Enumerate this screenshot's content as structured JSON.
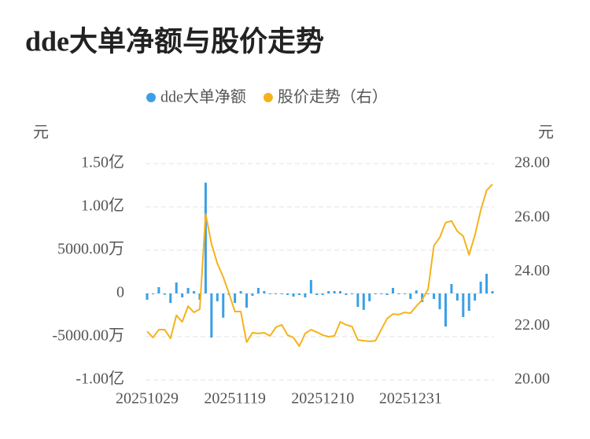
{
  "chart_data": {
    "type": "bar-line",
    "title": "dde大单净额与股价走势",
    "y_label": "元",
    "y2_label": "元",
    "categories": [
      "20251029",
      null,
      null,
      null,
      null,
      null,
      null,
      null,
      null,
      null,
      null,
      null,
      null,
      null,
      null,
      "20251119",
      null,
      null,
      null,
      null,
      null,
      null,
      null,
      null,
      null,
      null,
      null,
      null,
      null,
      null,
      "20251210",
      null,
      null,
      null,
      null,
      null,
      null,
      null,
      null,
      null,
      null,
      null,
      null,
      null,
      null,
      "20251231",
      null,
      null,
      null,
      null,
      null,
      null,
      null,
      null,
      null,
      null,
      null,
      null,
      null,
      null
    ],
    "series": [
      {
        "name": "dde大单净额",
        "color": "#3a9fe6",
        "kind": "bar",
        "values": [
          -7300000,
          -1000000,
          7300000,
          -1500000,
          -11000000,
          12700000,
          -4500000,
          6400000,
          2700000,
          -7300000,
          128000000,
          -50900000,
          -9000000,
          -28000000,
          -1800000,
          -10900000,
          2700000,
          -16400000,
          -2700000,
          6400000,
          2700000,
          -900000,
          -900000,
          -900000,
          -1800000,
          -3600000,
          -1800000,
          -4500000,
          15500000,
          -1800000,
          -1800000,
          2700000,
          2700000,
          2700000,
          -1800000,
          -900000,
          -15500000,
          -19000000,
          -9000000,
          -900000,
          -900000,
          -1800000,
          6400000,
          -900000,
          -900000,
          -6400000,
          3600000,
          -10000000,
          -900000,
          -6400000,
          -18200000,
          -38200000,
          10900000,
          -8200000,
          -27300000,
          -20000000,
          -8200000,
          13600000,
          22700000,
          2700000
        ]
      },
      {
        "name": "股价走势（右）",
        "color": "#f5b21c",
        "kind": "line",
        "axis": "y2",
        "values": [
          21.8,
          21.57,
          21.86,
          21.86,
          21.54,
          22.39,
          22.15,
          22.73,
          22.5,
          22.62,
          26.14,
          25.03,
          24.31,
          23.81,
          23.2,
          22.53,
          22.53,
          21.4,
          21.75,
          21.72,
          21.75,
          21.63,
          21.95,
          22.04,
          21.66,
          21.57,
          21.25,
          21.72,
          21.86,
          21.77,
          21.66,
          21.6,
          21.63,
          22.15,
          22.04,
          21.98,
          21.48,
          21.45,
          21.43,
          21.45,
          21.86,
          22.27,
          22.44,
          22.42,
          22.5,
          22.47,
          22.73,
          22.97,
          23.35,
          24.97,
          25.27,
          25.82,
          25.88,
          25.5,
          25.32,
          24.63,
          25.35,
          26.28,
          27.01,
          27.24
        ]
      }
    ],
    "ylim": [
      -100000000,
      150000000
    ],
    "yticks": [
      {
        "value": -100000000,
        "label": "-1.00亿"
      },
      {
        "value": -50000000,
        "label": "-5000.00万"
      },
      0,
      {
        "value": 50000000,
        "label": "5000.00万"
      },
      {
        "value": 100000000,
        "label": "1.00亿"
      },
      {
        "value": 150000000,
        "label": "1.50亿"
      }
    ],
    "y2lim": [
      20,
      28
    ],
    "y2ticks": [
      {
        "value": 20,
        "label": "20.00"
      },
      {
        "value": 22,
        "label": "22.00"
      },
      {
        "value": 24,
        "label": "24.00"
      },
      {
        "value": 26,
        "label": "26.00"
      },
      {
        "value": 28,
        "label": "28.00"
      }
    ],
    "grid": true,
    "legend": "top"
  }
}
